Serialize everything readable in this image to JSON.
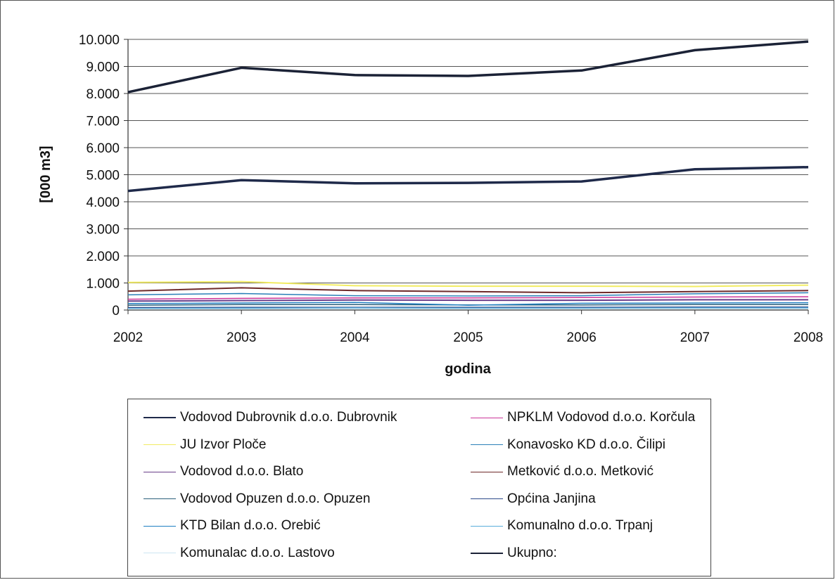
{
  "chart_data": {
    "type": "line",
    "title": "",
    "xlabel": "godina",
    "ylabel": "[000 m3]",
    "x": [
      "2002",
      "2003",
      "2004",
      "2005",
      "2006",
      "2007",
      "2008"
    ],
    "ylim": [
      0,
      10000
    ],
    "yticks": [
      0,
      1000,
      2000,
      3000,
      4000,
      5000,
      6000,
      7000,
      8000,
      9000,
      10000
    ],
    "ytick_labels": [
      "0",
      "1.000",
      "2.000",
      "3.000",
      "4.000",
      "5.000",
      "6.000",
      "7.000",
      "8.000",
      "9.000",
      "10.000"
    ],
    "grid": true,
    "legend_position": "bottom",
    "series": [
      {
        "name": "Vodovod Dubrovnik d.o.o. Dubrovnik",
        "color": "#1f2a4a",
        "width": 3.5,
        "values": [
          4400,
          4800,
          4680,
          4700,
          4750,
          5200,
          5280
        ]
      },
      {
        "name": "NPKLM Vodovod d.o.o. Korčula",
        "color": "#cc3399",
        "width": 1.5,
        "values": [
          400,
          430,
          450,
          450,
          460,
          480,
          490
        ]
      },
      {
        "name": "JU Izvor Ploče",
        "color": "#f2ec62",
        "width": 2,
        "values": [
          1020,
          1050,
          900,
          880,
          880,
          870,
          920
        ]
      },
      {
        "name": "Konavosko KD d.o.o. Čilipi",
        "color": "#2a7fb8",
        "width": 1.5,
        "values": [
          560,
          610,
          530,
          520,
          530,
          600,
          640
        ]
      },
      {
        "name": "Vodovod d.o.o. Blato",
        "color": "#6a3f8a",
        "width": 2,
        "values": [
          330,
          350,
          370,
          360,
          360,
          380,
          380
        ]
      },
      {
        "name": "Metković d.o.o. Metković",
        "color": "#6e2a2a",
        "width": 2,
        "values": [
          700,
          820,
          720,
          680,
          640,
          680,
          720
        ]
      },
      {
        "name": "Vodovod Opuzen d.o.o. Opuzen",
        "color": "#2b5f7a",
        "width": 1.5,
        "values": [
          180,
          200,
          200,
          190,
          190,
          200,
          200
        ]
      },
      {
        "name": "Općina Janjina",
        "color": "#2c4a8a",
        "width": 1.5,
        "values": [
          90,
          100,
          100,
          100,
          100,
          110,
          110
        ]
      },
      {
        "name": "KTD Bilan d.o.o. Orebić",
        "color": "#1f7fc2",
        "width": 1.5,
        "values": [
          240,
          260,
          280,
          180,
          250,
          260,
          270
        ]
      },
      {
        "name": "Komunalno d.o.o. Trpanj",
        "color": "#5aaedc",
        "width": 1.5,
        "values": [
          60,
          70,
          80,
          70,
          70,
          80,
          80
        ]
      },
      {
        "name": "Komunalac d.o.o. Lastovo",
        "color": "#cde6f2",
        "width": 1.5,
        "values": [
          30,
          35,
          40,
          40,
          40,
          45,
          45
        ]
      },
      {
        "name": "Ukupno:",
        "color": "#1b2236",
        "width": 3.5,
        "values": [
          8050,
          8950,
          8680,
          8650,
          8850,
          9600,
          9920
        ]
      }
    ]
  }
}
